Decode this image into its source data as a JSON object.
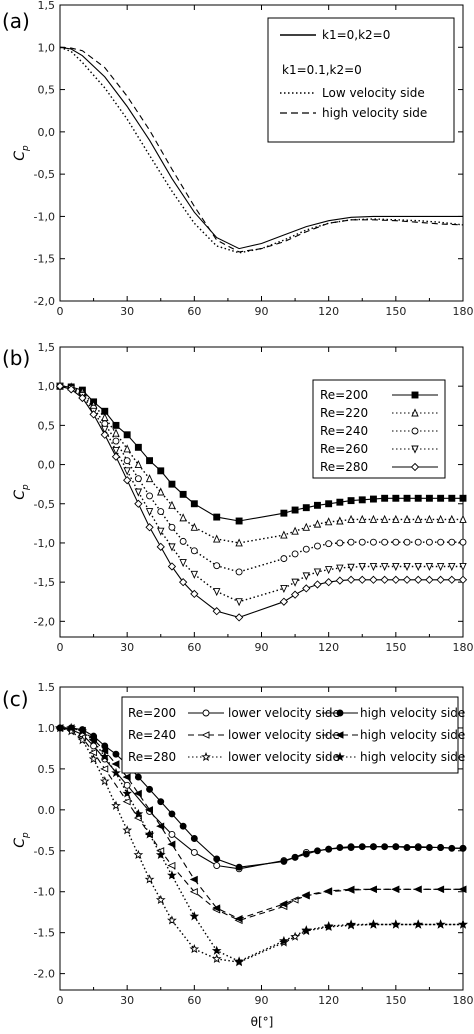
{
  "chart_data": [
    {
      "type": "line",
      "panel_label": "(a)",
      "ylabel_main": "C",
      "ylabel_sub": "p",
      "xlim": [
        0,
        180
      ],
      "ylim": [
        -2.0,
        1.5
      ],
      "xticks": [
        "0",
        "30",
        "60",
        "90",
        "120",
        "150",
        "180"
      ],
      "yticks": [
        "1,5",
        "1,0",
        "0,5",
        "0,0",
        "-0,5",
        "-1,0",
        "-1,5",
        "-2,0"
      ],
      "legend_header": "k1=0.1,k2=0",
      "series": [
        {
          "name": "k1=0,k2=0",
          "dash": "solid",
          "x": [
            0,
            5,
            10,
            20,
            30,
            40,
            50,
            60,
            70,
            80,
            90,
            100,
            110,
            120,
            130,
            140,
            150,
            160,
            170,
            180
          ],
          "y": [
            1.0,
            0.98,
            0.9,
            0.65,
            0.3,
            -0.1,
            -0.55,
            -0.95,
            -1.25,
            -1.38,
            -1.32,
            -1.22,
            -1.12,
            -1.05,
            -1.01,
            -1.0,
            -1.0,
            -1.0,
            -1.0,
            -1.0
          ]
        },
        {
          "name": "Low velocity side",
          "dash": "dotted",
          "x": [
            0,
            5,
            10,
            20,
            30,
            40,
            50,
            60,
            70,
            80,
            90,
            100,
            110,
            120,
            130,
            140,
            150,
            160,
            170,
            180
          ],
          "y": [
            1.0,
            0.95,
            0.82,
            0.52,
            0.15,
            -0.28,
            -0.7,
            -1.08,
            -1.35,
            -1.43,
            -1.38,
            -1.28,
            -1.16,
            -1.08,
            -1.04,
            -1.03,
            -1.04,
            -1.05,
            -1.07,
            -1.1
          ]
        },
        {
          "name": "high velocity side",
          "dash": "dashed",
          "x": [
            0,
            5,
            10,
            20,
            30,
            40,
            50,
            60,
            70,
            80,
            90,
            100,
            110,
            120,
            130,
            140,
            150,
            160,
            170,
            180
          ],
          "y": [
            1.0,
            0.99,
            0.96,
            0.76,
            0.42,
            0.02,
            -0.44,
            -0.88,
            -1.28,
            -1.42,
            -1.38,
            -1.3,
            -1.18,
            -1.08,
            -1.04,
            -1.04,
            -1.05,
            -1.07,
            -1.09,
            -1.1
          ]
        }
      ]
    },
    {
      "type": "line",
      "panel_label": "(b)",
      "ylabel_main": "C",
      "ylabel_sub": "p",
      "xlim": [
        0,
        180
      ],
      "ylim": [
        -2.2,
        1.5
      ],
      "xticks": [
        "0",
        "30",
        "60",
        "90",
        "120",
        "150",
        "180"
      ],
      "yticks": [
        "1,5",
        "1,0",
        "0,5",
        "0,0",
        "-0,5",
        "-1,0",
        "-1,5",
        "-2,0"
      ],
      "series": [
        {
          "name": "Re=200",
          "dash": "solid",
          "marker": "square-filled",
          "x": [
            0,
            5,
            10,
            15,
            20,
            25,
            30,
            35,
            40,
            45,
            50,
            55,
            60,
            70,
            80,
            100,
            105,
            110,
            115,
            120,
            125,
            130,
            135,
            140,
            145,
            150,
            155,
            160,
            165,
            170,
            175,
            180
          ],
          "y": [
            1.0,
            0.99,
            0.95,
            0.8,
            0.68,
            0.5,
            0.38,
            0.22,
            0.05,
            -0.08,
            -0.25,
            -0.38,
            -0.5,
            -0.67,
            -0.72,
            -0.62,
            -0.58,
            -0.55,
            -0.52,
            -0.5,
            -0.48,
            -0.46,
            -0.45,
            -0.44,
            -0.43,
            -0.43,
            -0.43,
            -0.43,
            -0.43,
            -0.43,
            -0.43,
            -0.43
          ]
        },
        {
          "name": "Re=220",
          "dash": "dotted",
          "marker": "triangle-up-open",
          "x": [
            0,
            5,
            10,
            15,
            20,
            25,
            30,
            35,
            40,
            45,
            50,
            55,
            60,
            70,
            80,
            100,
            105,
            110,
            115,
            120,
            125,
            130,
            135,
            140,
            145,
            150,
            155,
            160,
            165,
            170,
            175,
            180
          ],
          "y": [
            1.0,
            0.99,
            0.93,
            0.76,
            0.6,
            0.4,
            0.2,
            0.0,
            -0.18,
            -0.35,
            -0.52,
            -0.68,
            -0.8,
            -0.95,
            -1.0,
            -0.9,
            -0.85,
            -0.8,
            -0.76,
            -0.73,
            -0.72,
            -0.7,
            -0.7,
            -0.7,
            -0.7,
            -0.7,
            -0.7,
            -0.7,
            -0.7,
            -0.7,
            -0.7,
            -0.7
          ]
        },
        {
          "name": "Re=240",
          "dash": "dotted",
          "marker": "circle-open",
          "x": [
            0,
            5,
            10,
            15,
            20,
            25,
            30,
            35,
            40,
            45,
            50,
            55,
            60,
            70,
            80,
            100,
            105,
            110,
            115,
            120,
            125,
            130,
            135,
            140,
            145,
            150,
            155,
            160,
            165,
            170,
            175,
            180
          ],
          "y": [
            1.0,
            0.98,
            0.9,
            0.72,
            0.52,
            0.3,
            0.05,
            -0.18,
            -0.4,
            -0.6,
            -0.8,
            -0.98,
            -1.1,
            -1.29,
            -1.37,
            -1.2,
            -1.14,
            -1.08,
            -1.04,
            -1.01,
            -1.0,
            -0.99,
            -0.99,
            -0.99,
            -0.99,
            -0.99,
            -0.99,
            -0.99,
            -0.99,
            -0.99,
            -0.99,
            -0.99
          ]
        },
        {
          "name": "Re=260",
          "dash": "dotted",
          "marker": "triangle-down-open",
          "x": [
            0,
            5,
            10,
            15,
            20,
            25,
            30,
            35,
            40,
            45,
            50,
            55,
            60,
            70,
            80,
            100,
            105,
            110,
            115,
            120,
            125,
            130,
            135,
            140,
            145,
            150,
            155,
            160,
            165,
            170,
            175,
            180
          ],
          "y": [
            1.0,
            0.97,
            0.88,
            0.68,
            0.45,
            0.18,
            -0.08,
            -0.35,
            -0.6,
            -0.85,
            -1.05,
            -1.25,
            -1.4,
            -1.62,
            -1.75,
            -1.58,
            -1.5,
            -1.42,
            -1.37,
            -1.34,
            -1.32,
            -1.31,
            -1.3,
            -1.3,
            -1.3,
            -1.3,
            -1.3,
            -1.3,
            -1.3,
            -1.3,
            -1.3,
            -1.3
          ]
        },
        {
          "name": "Re=280",
          "dash": "solid",
          "marker": "diamond-open",
          "x": [
            0,
            5,
            10,
            15,
            20,
            25,
            30,
            35,
            40,
            45,
            50,
            55,
            60,
            70,
            80,
            100,
            105,
            110,
            115,
            120,
            125,
            130,
            135,
            140,
            145,
            150,
            155,
            160,
            165,
            170,
            175,
            180
          ],
          "y": [
            1.0,
            0.96,
            0.85,
            0.64,
            0.38,
            0.1,
            -0.2,
            -0.5,
            -0.8,
            -1.05,
            -1.3,
            -1.5,
            -1.65,
            -1.87,
            -1.95,
            -1.75,
            -1.66,
            -1.58,
            -1.53,
            -1.5,
            -1.48,
            -1.47,
            -1.47,
            -1.47,
            -1.47,
            -1.47,
            -1.47,
            -1.47,
            -1.47,
            -1.47,
            -1.47,
            -1.47
          ]
        }
      ]
    },
    {
      "type": "line",
      "panel_label": "(c)",
      "ylabel_main": "C",
      "ylabel_sub": "p",
      "xlabel": "θ[°]",
      "xlim": [
        0,
        180
      ],
      "ylim": [
        -2.2,
        1.5
      ],
      "xticks": [
        "0",
        "30",
        "60",
        "90",
        "120",
        "150",
        "180"
      ],
      "yticks": [
        "1.5",
        "1.0",
        "0.5",
        "0.0",
        "-0.5",
        "-1.0",
        "-1.5",
        "-2.0"
      ],
      "legend_rows": [
        {
          "re": "Re=200",
          "low": "lower velocity side",
          "high": "high velocity side"
        },
        {
          "re": "Re=240",
          "low": "lower velocity side",
          "high": "high velocity side"
        },
        {
          "re": "Re=280",
          "low": "lower velocity side",
          "high": "high velocity side"
        }
      ],
      "series": [
        {
          "name": "Re=200 lower velocity side",
          "dash": "solid",
          "marker": "circle-open",
          "x": [
            0,
            5,
            10,
            15,
            20,
            30,
            40,
            50,
            60,
            70,
            80,
            100,
            105,
            110,
            120,
            130,
            140,
            150,
            160,
            170,
            180
          ],
          "y": [
            1.0,
            0.98,
            0.92,
            0.78,
            0.62,
            0.3,
            -0.02,
            -0.3,
            -0.52,
            -0.68,
            -0.72,
            -0.62,
            -0.58,
            -0.52,
            -0.48,
            -0.46,
            -0.45,
            -0.45,
            -0.45,
            -0.46,
            -0.47
          ]
        },
        {
          "name": "Re=200 high velocity side",
          "dash": "solid",
          "marker": "circle-filled",
          "x": [
            0,
            5,
            10,
            15,
            20,
            25,
            30,
            35,
            40,
            45,
            50,
            55,
            60,
            70,
            80,
            100,
            105,
            110,
            115,
            120,
            125,
            130,
            135,
            140,
            145,
            150,
            155,
            160,
            165,
            170,
            175,
            180
          ],
          "y": [
            1.0,
            1.0,
            0.98,
            0.9,
            0.78,
            0.68,
            0.55,
            0.4,
            0.25,
            0.1,
            -0.05,
            -0.2,
            -0.35,
            -0.6,
            -0.7,
            -0.63,
            -0.58,
            -0.54,
            -0.5,
            -0.48,
            -0.46,
            -0.45,
            -0.45,
            -0.45,
            -0.45,
            -0.45,
            -0.46,
            -0.46,
            -0.46,
            -0.46,
            -0.47,
            -0.47
          ]
        },
        {
          "name": "Re=240 lower velocity side",
          "dash": "dashed",
          "marker": "triangle-left-open",
          "x": [
            0,
            5,
            10,
            15,
            20,
            30,
            35,
            40,
            45,
            50,
            60,
            70,
            80,
            100,
            105,
            110,
            120,
            130,
            140,
            150,
            160,
            170,
            180
          ],
          "y": [
            1.0,
            0.97,
            0.88,
            0.7,
            0.5,
            0.1,
            -0.1,
            -0.3,
            -0.5,
            -0.68,
            -1.0,
            -1.22,
            -1.35,
            -1.18,
            -1.1,
            -1.05,
            -1.0,
            -0.98,
            -0.97,
            -0.97,
            -0.97,
            -0.97,
            -0.97
          ]
        },
        {
          "name": "Re=240 high velocity side",
          "dash": "dashed",
          "marker": "triangle-left-filled",
          "x": [
            0,
            5,
            10,
            15,
            20,
            25,
            30,
            35,
            40,
            45,
            50,
            60,
            70,
            80,
            100,
            110,
            120,
            130,
            140,
            150,
            160,
            170,
            180
          ],
          "y": [
            1.0,
            1.0,
            0.97,
            0.86,
            0.72,
            0.56,
            0.4,
            0.2,
            0.0,
            -0.2,
            -0.42,
            -0.85,
            -1.2,
            -1.33,
            -1.15,
            -1.04,
            -0.99,
            -0.97,
            -0.97,
            -0.97,
            -0.97,
            -0.97,
            -0.97
          ]
        },
        {
          "name": "Re=280 lower velocity side",
          "dash": "dotted",
          "marker": "star-open",
          "x": [
            0,
            5,
            10,
            15,
            20,
            25,
            30,
            35,
            40,
            45,
            50,
            60,
            70,
            80,
            100,
            105,
            110,
            120,
            130,
            140,
            150,
            160,
            170,
            180
          ],
          "y": [
            1.0,
            0.96,
            0.85,
            0.62,
            0.35,
            0.05,
            -0.25,
            -0.55,
            -0.85,
            -1.1,
            -1.35,
            -1.7,
            -1.82,
            -1.86,
            -1.62,
            -1.55,
            -1.48,
            -1.43,
            -1.41,
            -1.4,
            -1.4,
            -1.4,
            -1.4,
            -1.4
          ]
        },
        {
          "name": "Re=280 high velocity side",
          "dash": "dotted",
          "marker": "star-filled",
          "x": [
            0,
            5,
            10,
            15,
            20,
            25,
            30,
            35,
            40,
            45,
            50,
            60,
            70,
            80,
            100,
            110,
            120,
            130,
            140,
            150,
            160,
            170,
            180
          ],
          "y": [
            1.0,
            1.0,
            0.96,
            0.84,
            0.65,
            0.45,
            0.2,
            -0.05,
            -0.3,
            -0.55,
            -0.8,
            -1.3,
            -1.72,
            -1.85,
            -1.6,
            -1.47,
            -1.42,
            -1.4,
            -1.4,
            -1.4,
            -1.4,
            -1.4,
            -1.4
          ]
        }
      ]
    }
  ]
}
